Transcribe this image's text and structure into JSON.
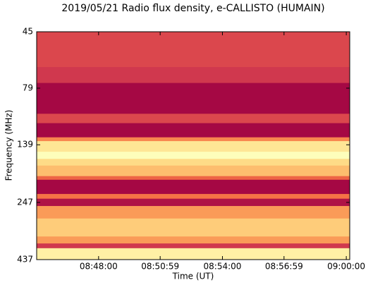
{
  "chart_data": {
    "type": "spectrogram",
    "title": "2019/05/21  Radio flux density, e-CALLISTO (HUMAIN)",
    "x_label": "Time (UT)",
    "y_label": "Frequency (MHz)",
    "xlim": [
      31500,
      32410
    ],
    "xticks": [
      {
        "value": 31680,
        "label": "08:48:00"
      },
      {
        "value": 31859,
        "label": "08:50:59"
      },
      {
        "value": 32040,
        "label": "08:54:00"
      },
      {
        "value": 32219,
        "label": "08:56:59"
      },
      {
        "value": 32400,
        "label": "09:00:00"
      }
    ],
    "ylim": [
      437,
      45
    ],
    "yticks": [
      45,
      79,
      139,
      247,
      437
    ],
    "y_log": true,
    "frequency_edges": [
      45,
      64,
      75,
      102,
      112,
      129,
      134,
      149,
      160,
      171,
      190,
      197,
      227,
      238,
      256,
      290,
      347,
      372,
      390,
      437
    ],
    "intensity": [
      0.2,
      0.15,
      0.02,
      0.2,
      0.02,
      0.4,
      0.7,
      0.85,
      0.65,
      0.55,
      0.3,
      0.02,
      0.35,
      0.05,
      0.45,
      0.6,
      0.45,
      0.15,
      0.75
    ],
    "colormap": [
      "#9e0142",
      "#d53e4f",
      "#f46d43",
      "#fdae61",
      "#fee08b",
      "#ffffbf",
      "#e6f598"
    ]
  }
}
